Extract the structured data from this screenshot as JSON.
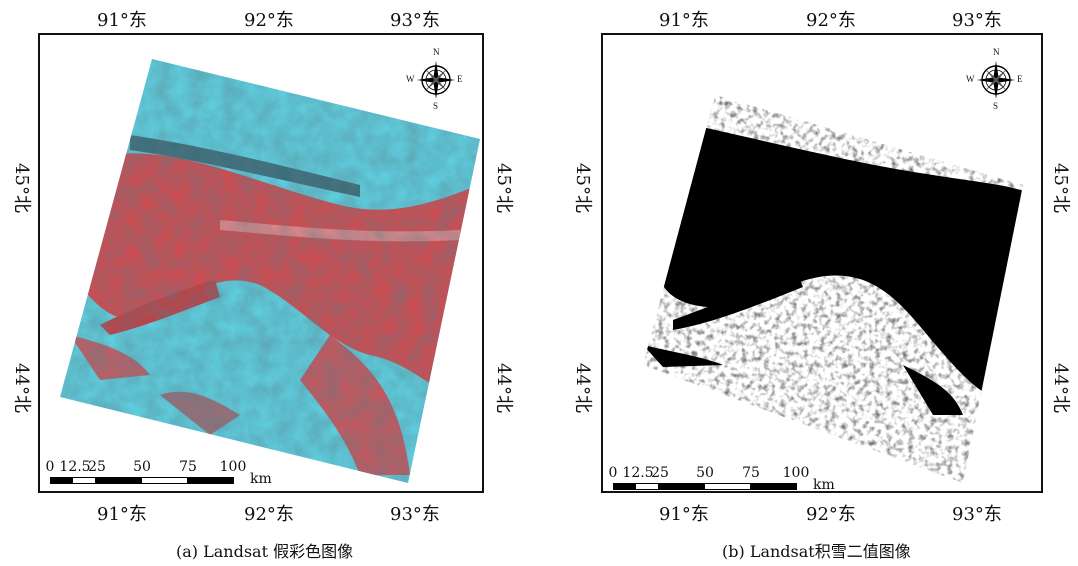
{
  "panels": [
    {
      "id": "a",
      "caption": "(a) Landsat 假彩色图像",
      "lon_labels": [
        "91°东",
        "92°东",
        "93°东"
      ],
      "lat_labels": [
        "45°北",
        "44°北"
      ],
      "scale_numbers": [
        "0",
        "12.5",
        "25",
        "50",
        "75",
        "100"
      ],
      "scale_unit": "km",
      "compass": {
        "n": "N",
        "s": "S",
        "e": "E",
        "w": "W"
      }
    },
    {
      "id": "b",
      "caption": "(b) Landsat积雪二值图像",
      "lon_labels": [
        "91°东",
        "92°东",
        "93°东"
      ],
      "lat_labels": [
        "45°北",
        "44°北"
      ],
      "scale_numbers": [
        "0",
        "12.5",
        "25",
        "50",
        "75",
        "100"
      ],
      "scale_unit": "km",
      "compass": {
        "n": "N",
        "s": "S",
        "e": "E",
        "w": "W"
      }
    }
  ],
  "colors": {
    "snow_cyan": "#5fd6e6",
    "vegetation_red": "#d9474a",
    "binary_black": "#000000",
    "binary_white": "#ffffff"
  }
}
